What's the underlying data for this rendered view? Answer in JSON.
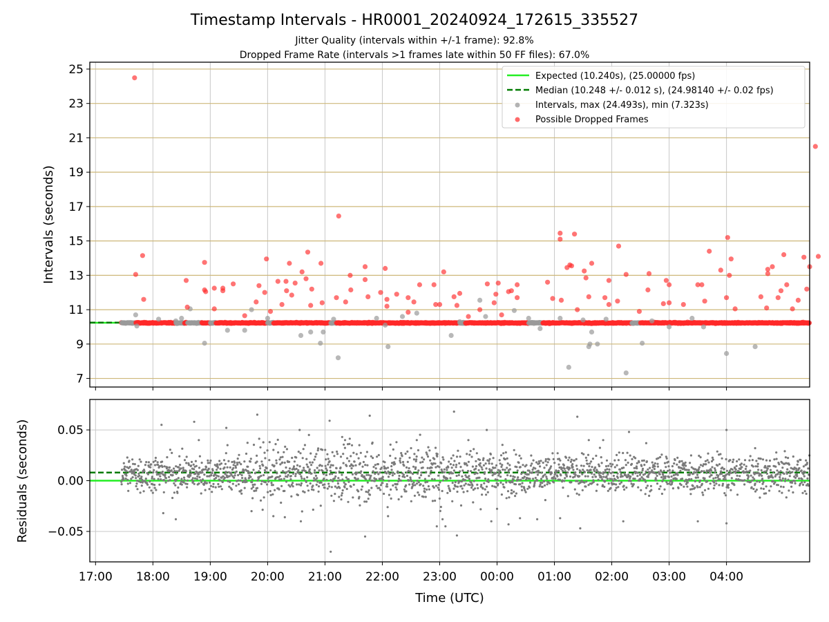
{
  "figure": {
    "title": "Timestamp Intervals - HR0001_20240924_172615_335527",
    "subtitle_1": "Jitter Quality (intervals within +/-1 frame): 92.8%",
    "subtitle_2": "Dropped Frame Rate (intervals >1 frames late within 50 FF files): 67.0%"
  },
  "chart_data": [
    {
      "type": "scatter",
      "ylabel": "Intervals (seconds)",
      "ylim": [
        6.5,
        25.4
      ],
      "yticks": [
        "7",
        "9",
        "11",
        "13",
        "15",
        "17",
        "19",
        "21",
        "23",
        "25"
      ],
      "hlines": [
        {
          "name": "Expected (10.240s), (25.00000 fps)",
          "y": 10.24,
          "color": "#22ee22",
          "style": "solid"
        },
        {
          "name": "Median (10.248 +/- 0.012 s), (24.98140 +/- 0.02 fps)",
          "y": 10.248,
          "color": "#007a00",
          "style": "dashed"
        }
      ],
      "series": [
        {
          "name": "Intervals, max (24.493s), min (7.323s)",
          "color": "#9a9a9a",
          "points": [
            [
              17.7,
              10.7
            ],
            [
              17.72,
              10.05
            ],
            [
              18.1,
              10.45
            ],
            [
              18.4,
              10.35
            ],
            [
              18.5,
              10.5
            ],
            [
              18.65,
              11.05
            ],
            [
              18.9,
              9.05
            ],
            [
              19.3,
              9.8
            ],
            [
              19.6,
              9.8
            ],
            [
              19.72,
              11.0
            ],
            [
              20.0,
              10.5
            ],
            [
              20.58,
              9.5
            ],
            [
              20.75,
              9.7
            ],
            [
              20.92,
              9.05
            ],
            [
              20.97,
              9.7
            ],
            [
              21.15,
              10.45
            ],
            [
              21.23,
              8.2
            ],
            [
              21.9,
              10.5
            ],
            [
              22.05,
              10.1
            ],
            [
              22.1,
              8.85
            ],
            [
              22.35,
              10.6
            ],
            [
              22.6,
              10.8
            ],
            [
              23.2,
              9.5
            ],
            [
              23.35,
              10.3
            ],
            [
              23.7,
              11.55
            ],
            [
              23.8,
              10.6
            ],
            [
              24.3,
              10.95
            ],
            [
              24.55,
              10.5
            ],
            [
              24.75,
              9.9
            ],
            [
              25.1,
              10.5
            ],
            [
              25.25,
              7.65
            ],
            [
              25.5,
              10.4
            ],
            [
              25.6,
              8.85
            ],
            [
              25.62,
              9.0
            ],
            [
              25.65,
              9.7
            ],
            [
              25.75,
              9.0
            ],
            [
              25.9,
              10.45
            ],
            [
              26.25,
              7.32
            ],
            [
              26.53,
              9.05
            ],
            [
              26.7,
              10.35
            ],
            [
              27.0,
              10.0
            ],
            [
              27.4,
              10.5
            ],
            [
              27.6,
              10.0
            ],
            [
              28.0,
              8.45
            ],
            [
              28.5,
              8.85
            ]
          ]
        },
        {
          "name": "Possible Dropped Frames",
          "color": "#ff2a2a",
          "points": [
            [
              17.68,
              24.49
            ],
            [
              17.7,
              13.05
            ],
            [
              17.82,
              14.15
            ],
            [
              17.84,
              11.6
            ],
            [
              18.58,
              12.7
            ],
            [
              18.6,
              11.15
            ],
            [
              18.9,
              13.75
            ],
            [
              18.9,
              12.15
            ],
            [
              18.92,
              12.05
            ],
            [
              19.07,
              11.05
            ],
            [
              19.07,
              12.25
            ],
            [
              19.22,
              12.25
            ],
            [
              19.22,
              12.1
            ],
            [
              19.4,
              12.5
            ],
            [
              19.6,
              10.65
            ],
            [
              19.8,
              11.45
            ],
            [
              19.85,
              12.4
            ],
            [
              19.95,
              12.0
            ],
            [
              19.98,
              13.95
            ],
            [
              20.05,
              10.9
            ],
            [
              20.18,
              12.65
            ],
            [
              20.25,
              11.3
            ],
            [
              20.32,
              12.65
            ],
            [
              20.33,
              12.1
            ],
            [
              20.38,
              13.7
            ],
            [
              20.42,
              11.85
            ],
            [
              20.48,
              12.55
            ],
            [
              20.6,
              13.2
            ],
            [
              20.67,
              12.8
            ],
            [
              20.7,
              14.35
            ],
            [
              20.75,
              11.25
            ],
            [
              20.77,
              12.2
            ],
            [
              20.93,
              13.7
            ],
            [
              20.95,
              11.4
            ],
            [
              21.2,
              11.7
            ],
            [
              21.24,
              16.45
            ],
            [
              21.36,
              11.45
            ],
            [
              21.44,
              13.0
            ],
            [
              21.45,
              12.15
            ],
            [
              21.7,
              12.75
            ],
            [
              21.7,
              13.5
            ],
            [
              21.75,
              11.75
            ],
            [
              21.97,
              12.0
            ],
            [
              22.05,
              13.4
            ],
            [
              22.08,
              11.6
            ],
            [
              22.08,
              11.2
            ],
            [
              22.25,
              11.9
            ],
            [
              22.45,
              10.85
            ],
            [
              22.45,
              11.7
            ],
            [
              22.55,
              11.45
            ],
            [
              22.65,
              12.45
            ],
            [
              22.9,
              12.45
            ],
            [
              22.93,
              11.3
            ],
            [
              23.0,
              11.3
            ],
            [
              23.07,
              13.2
            ],
            [
              23.25,
              11.75
            ],
            [
              23.3,
              11.25
            ],
            [
              23.35,
              11.95
            ],
            [
              23.5,
              10.6
            ],
            [
              23.7,
              11.0
            ],
            [
              23.83,
              12.5
            ],
            [
              23.95,
              11.4
            ],
            [
              23.98,
              11.9
            ],
            [
              24.02,
              12.55
            ],
            [
              24.08,
              10.7
            ],
            [
              24.2,
              12.05
            ],
            [
              24.25,
              12.1
            ],
            [
              24.35,
              12.45
            ],
            [
              24.35,
              11.7
            ],
            [
              24.88,
              12.6
            ],
            [
              24.97,
              11.65
            ],
            [
              25.1,
              15.45
            ],
            [
              25.1,
              15.1
            ],
            [
              25.12,
              11.55
            ],
            [
              25.22,
              13.45
            ],
            [
              25.27,
              13.6
            ],
            [
              25.3,
              13.55
            ],
            [
              25.35,
              15.4
            ],
            [
              25.4,
              11.0
            ],
            [
              25.52,
              13.25
            ],
            [
              25.55,
              12.85
            ],
            [
              25.6,
              11.75
            ],
            [
              25.65,
              13.7
            ],
            [
              25.88,
              11.7
            ],
            [
              25.95,
              11.3
            ],
            [
              25.95,
              12.7
            ],
            [
              26.1,
              11.5
            ],
            [
              26.12,
              14.7
            ],
            [
              26.25,
              13.05
            ],
            [
              26.48,
              10.9
            ],
            [
              26.63,
              12.15
            ],
            [
              26.65,
              13.1
            ],
            [
              26.9,
              11.35
            ],
            [
              26.95,
              12.7
            ],
            [
              27.0,
              11.4
            ],
            [
              27.0,
              12.45
            ],
            [
              27.25,
              11.3
            ],
            [
              27.5,
              12.45
            ],
            [
              27.57,
              12.45
            ],
            [
              27.62,
              11.5
            ],
            [
              27.7,
              14.4
            ],
            [
              27.9,
              13.3
            ],
            [
              28.0,
              11.7
            ],
            [
              28.02,
              15.2
            ],
            [
              28.05,
              13.0
            ],
            [
              28.08,
              13.95
            ],
            [
              28.15,
              11.05
            ],
            [
              28.6,
              11.75
            ],
            [
              28.7,
              11.1
            ],
            [
              28.72,
              13.35
            ],
            [
              28.72,
              13.1
            ],
            [
              28.8,
              13.5
            ],
            [
              28.9,
              11.7
            ],
            [
              28.95,
              12.1
            ],
            [
              29.0,
              14.2
            ],
            [
              29.05,
              12.45
            ],
            [
              29.15,
              11.05
            ],
            [
              29.25,
              11.55
            ],
            [
              29.35,
              14.05
            ],
            [
              29.4,
              12.2
            ],
            [
              29.45,
              13.5
            ],
            [
              29.55,
              20.5
            ],
            [
              29.6,
              14.1
            ]
          ]
        }
      ],
      "legend": {
        "placement": "top-right"
      }
    },
    {
      "type": "scatter",
      "ylabel": "Residuals (seconds)",
      "ylim": [
        -0.08,
        0.08
      ],
      "yticks": [
        "−0.05",
        "0.00",
        "0.05"
      ],
      "hlines": [
        {
          "y": 0.0,
          "color": "#22ee22",
          "style": "solid"
        },
        {
          "y": 0.008,
          "color": "#007a00",
          "style": "dashed"
        }
      ],
      "series": [
        {
          "color": "#7a7a7a",
          "points": [
            [
              18.15,
              0.055
            ],
            [
              18.18,
              -0.032
            ],
            [
              18.4,
              -0.038
            ],
            [
              18.72,
              0.058
            ],
            [
              18.8,
              0.04
            ],
            [
              19.28,
              0.052
            ],
            [
              19.3,
              0.035
            ],
            [
              19.72,
              -0.03
            ],
            [
              19.82,
              0.065
            ],
            [
              20.1,
              -0.035
            ],
            [
              20.3,
              -0.036
            ],
            [
              20.58,
              -0.04
            ],
            [
              20.72,
              0.045
            ],
            [
              21.08,
              0.059
            ],
            [
              21.1,
              -0.07
            ],
            [
              21.3,
              0.043
            ],
            [
              21.35,
              0.04
            ],
            [
              21.6,
              0.035
            ],
            [
              21.7,
              -0.055
            ],
            [
              21.78,
              0.064
            ],
            [
              22.1,
              -0.035
            ],
            [
              22.5,
              0.032
            ],
            [
              22.6,
              0.04
            ],
            [
              22.95,
              -0.045
            ],
            [
              23.05,
              -0.038
            ],
            [
              23.1,
              -0.045
            ],
            [
              23.25,
              0.068
            ],
            [
              23.3,
              -0.054
            ],
            [
              23.5,
              0.04
            ],
            [
              23.82,
              0.05
            ],
            [
              23.9,
              -0.04
            ],
            [
              24.2,
              -0.043
            ],
            [
              24.4,
              -0.037
            ],
            [
              24.7,
              -0.038
            ],
            [
              25.1,
              -0.037
            ],
            [
              25.4,
              0.063
            ],
            [
              25.45,
              -0.047
            ],
            [
              25.6,
              0.04
            ],
            [
              25.85,
              0.04
            ],
            [
              26.2,
              -0.04
            ],
            [
              26.3,
              0.048
            ],
            [
              26.6,
              0.037
            ],
            [
              27.5,
              -0.04
            ],
            [
              28.0,
              -0.042
            ],
            [
              28.0,
              0.05
            ],
            [
              28.5,
              0.032
            ]
          ]
        }
      ]
    }
  ],
  "xaxis": {
    "xlabel": "Time (UTC)",
    "ticks": [
      "17:00",
      "18:00",
      "19:00",
      "20:00",
      "21:00",
      "22:00",
      "23:00",
      "00:00",
      "01:00",
      "02:00",
      "03:00",
      "04:00"
    ],
    "xlim_hours": [
      16.9,
      29.45
    ]
  }
}
